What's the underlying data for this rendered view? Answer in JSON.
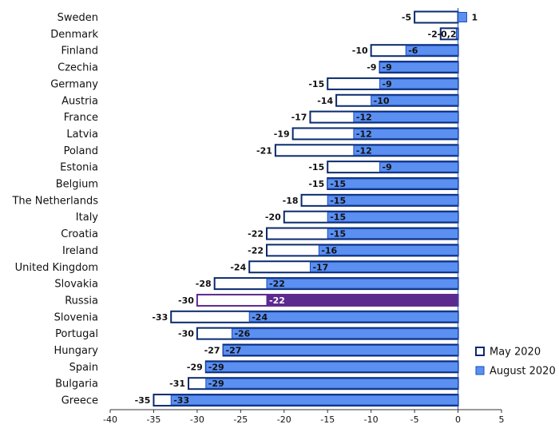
{
  "chart_data": {
    "type": "bar",
    "orientation": "horizontal",
    "categories": [
      "Sweden",
      "Denmark",
      "Finland",
      "Czechia",
      "Germany",
      "Austria",
      "France",
      "Latvia",
      "Poland",
      "Estonia",
      "Belgium",
      "The Netherlands",
      "Italy",
      "Croatia",
      "Ireland",
      "United Kingdom",
      "Slovakia",
      "Russia",
      "Slovenia",
      "Portugal",
      "Hungary",
      "Spain",
      "Bulgaria",
      "Greece"
    ],
    "series": [
      {
        "name": "May 2020",
        "values": [
          -5,
          -2,
          -10,
          -9,
          -15,
          -14,
          -17,
          -19,
          -21,
          -15,
          -15,
          -18,
          -20,
          -22,
          -22,
          -24,
          -28,
          -30,
          -33,
          -30,
          -27,
          -29,
          -31,
          -35
        ],
        "labels": [
          "-5",
          "-2",
          "-10",
          "-9",
          "-15",
          "-14",
          "-17",
          "-19",
          "-21",
          "-15",
          "-15",
          "-18",
          "-20",
          "-22",
          "-22",
          "-24",
          "-28",
          "-30",
          "-33",
          "-30",
          "-27",
          "-29",
          "-31",
          "-35"
        ]
      },
      {
        "name": "August 2020",
        "values": [
          1,
          -0.2,
          -6,
          -9,
          -9,
          -10,
          -12,
          -12,
          -12,
          -9,
          -15,
          -15,
          -15,
          -15,
          -16,
          -17,
          -22,
          -22,
          -24,
          -26,
          -27,
          -29,
          -29,
          -33
        ],
        "labels": [
          "1",
          "-0,2",
          "-6",
          "-9",
          "-9",
          "-10",
          "-12",
          "-12",
          "-12",
          "-9",
          "-15",
          "-15",
          "-15",
          "-15",
          "-16",
          "-17",
          "-22",
          "-22",
          "-24",
          "-26",
          "-27",
          "-29",
          "-29",
          "-33"
        ]
      }
    ],
    "highlight_category": "Russia",
    "xlim": [
      -40,
      5
    ],
    "xticks": [
      "-40",
      "-35",
      "-30",
      "-25",
      "-20",
      "-15",
      "-10",
      "-5",
      "0",
      "5"
    ],
    "grid": false,
    "legend_position": "bottom-right",
    "colors": {
      "may_fill": "#ffffff",
      "may_border": "#0a2a6e",
      "august_fill": "#5b8ff0",
      "august_border": "#1e4fc0",
      "highlight_fill": "#5c2a8f",
      "highlight_border": "#5c2a8f"
    }
  },
  "legend": {
    "may_label": "May 2020",
    "august_label": "August 2020"
  }
}
